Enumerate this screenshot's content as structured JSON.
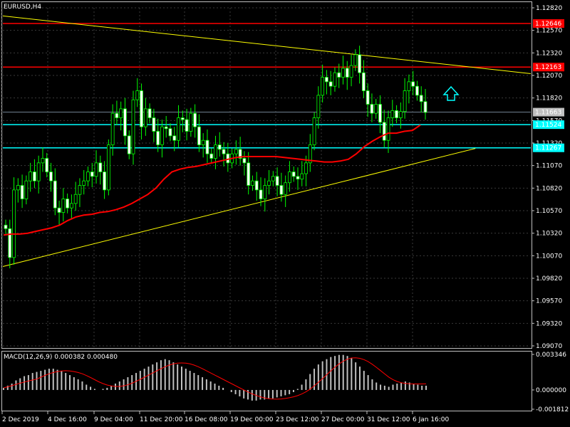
{
  "chart_data": {
    "type": "candlestick",
    "title": "EURUSD,H4",
    "price_axis": {
      "ticks": [
        "1.12820",
        "1.12570",
        "1.12320",
        "1.12070",
        "1.11820",
        "1.11570",
        "1.11320",
        "1.11070",
        "1.10820",
        "1.10570",
        "1.10320",
        "1.10070",
        "1.09820",
        "1.09570",
        "1.09320",
        "1.09070"
      ]
    },
    "time_axis": {
      "ticks": [
        "2 Dec 2019",
        "4 Dec 16:00",
        "9 Dec 04:00",
        "11 Dec 20:00",
        "16 Dec 08:00",
        "19 Dec 00:00",
        "23 Dec 12:00",
        "27 Dec 00:00",
        "31 Dec 12:00",
        "6 Jan 16:00"
      ]
    },
    "horizontal_lines": [
      {
        "price": 1.12646,
        "label": "1.12646",
        "color": "#ff0000"
      },
      {
        "price": 1.12163,
        "label": "1.12163",
        "color": "#ff0000"
      },
      {
        "price": 1.11524,
        "label": "1.11524",
        "color": "#00ffff"
      },
      {
        "price": 1.11267,
        "label": "1.11267",
        "color": "#00ffff"
      }
    ],
    "current_price": {
      "price": 1.11663,
      "label": "1.11663",
      "color": "#c0c0c0"
    },
    "trendlines": [
      {
        "from": [
          0,
          1.1273
        ],
        "to": [
          1,
          1.1209
        ],
        "color": "#ffff00"
      },
      {
        "from": [
          0,
          1.0995
        ],
        "to": [
          0.895,
          1.1126
        ],
        "color": "#ffff00"
      }
    ],
    "moving_average": {
      "color": "#ff0000",
      "values": [
        1.103,
        1.1031,
        1.1031,
        1.1032,
        1.1034,
        1.1036,
        1.1038,
        1.1041,
        1.1046,
        1.105,
        1.1052,
        1.1053,
        1.1055,
        1.1056,
        1.1058,
        1.1061,
        1.1065,
        1.107,
        1.1075,
        1.1082,
        1.1092,
        1.11,
        1.1103,
        1.1105,
        1.1106,
        1.1108,
        1.111,
        1.1112,
        1.1114,
        1.1116,
        1.1117,
        1.1117,
        1.1117,
        1.1117,
        1.1117,
        1.1116,
        1.1115,
        1.1114,
        1.1113,
        1.1112,
        1.1111,
        1.1111,
        1.1112,
        1.1114,
        1.112,
        1.1128,
        1.1134,
        1.1139,
        1.1143,
        1.1143,
        1.1145,
        1.1146,
        1.1152
      ]
    },
    "candle_closes": [
      1.1037,
      1.1005,
      1.108,
      1.1085,
      1.107,
      1.109,
      1.11,
      1.109,
      1.111,
      1.1115,
      1.11,
      1.109,
      1.106,
      1.1055,
      1.107,
      1.106,
      1.1065,
      1.1075,
      1.1085,
      1.109,
      1.11,
      1.1095,
      1.111,
      1.11,
      1.108,
      1.113,
      1.1165,
      1.116,
      1.117,
      1.114,
      1.112,
      1.118,
      1.119,
      1.115,
      1.117,
      1.116,
      1.1145,
      1.113,
      1.115,
      1.1148,
      1.114,
      1.1135,
      1.116,
      1.1158,
      1.1145,
      1.1165,
      1.115,
      1.113,
      1.1135,
      1.112,
      1.1115,
      1.113,
      1.1125,
      1.112,
      1.111,
      1.112,
      1.1125,
      1.1115,
      1.111,
      1.1085,
      1.109,
      1.108,
      1.107,
      1.1085,
      1.109,
      1.1095,
      1.1085,
      1.1075,
      1.1088,
      1.11,
      1.1095,
      1.1092,
      1.1098,
      1.111,
      1.113,
      1.116,
      1.1185,
      1.1205,
      1.12,
      1.1195,
      1.121,
      1.1205,
      1.1215,
      1.1205,
      1.1218,
      1.123,
      1.121,
      1.119,
      1.1175,
      1.1165,
      1.1175,
      1.1155,
      1.1135,
      1.116,
      1.1168,
      1.116,
      1.1167,
      1.119,
      1.12,
      1.1195,
      1.1185,
      1.1178,
      1.1166
    ],
    "macd": {
      "label": "MACD(12,26,9) 0.000382 0.000480",
      "ticks": [
        "0.003346",
        "0.000000",
        "-0.001812"
      ],
      "histogram": [
        0.0002,
        0.0004,
        0.0006,
        0.0009,
        0.0011,
        0.0013,
        0.0014,
        0.0016,
        0.0017,
        0.0018,
        0.0019,
        0.002,
        0.002,
        0.0019,
        0.0018,
        0.0016,
        0.0014,
        0.0012,
        0.001,
        0.0008,
        0.0005,
        0.0003,
        0.0001,
        0.0,
        0.0001,
        0.0002,
        0.0004,
        0.0006,
        0.0008,
        0.001,
        0.0012,
        0.0014,
        0.0016,
        0.0018,
        0.002,
        0.0022,
        0.0024,
        0.0026,
        0.0028,
        0.0029,
        0.0028,
        0.0026,
        0.0024,
        0.0022,
        0.002,
        0.0018,
        0.0016,
        0.0014,
        0.0012,
        0.001,
        0.0008,
        0.0006,
        0.0004,
        0.0002,
        0.0,
        -0.0002,
        -0.0004,
        -0.0006,
        -0.0008,
        -0.0009,
        -0.001,
        -0.001,
        -0.0009,
        -0.0009,
        -0.0008,
        -0.0008,
        -0.0007,
        -0.0006,
        -0.0005,
        -0.0004,
        -0.0002,
        0.0001,
        0.0005,
        0.001,
        0.0015,
        0.002,
        0.0024,
        0.0027,
        0.0029,
        0.0031,
        0.0032,
        0.0033,
        0.0033,
        0.0032,
        0.003,
        0.0026,
        0.0022,
        0.0018,
        0.0014,
        0.001,
        0.0007,
        0.0005,
        0.0004,
        0.0003,
        0.0005,
        0.0006,
        0.0007,
        0.0008,
        0.0007,
        0.0006,
        0.0005,
        0.0004,
        0.0004
      ],
      "signal_color": "#ff0000"
    },
    "arrow": {
      "label": "buy-arrow",
      "color": "#00ffff"
    }
  }
}
